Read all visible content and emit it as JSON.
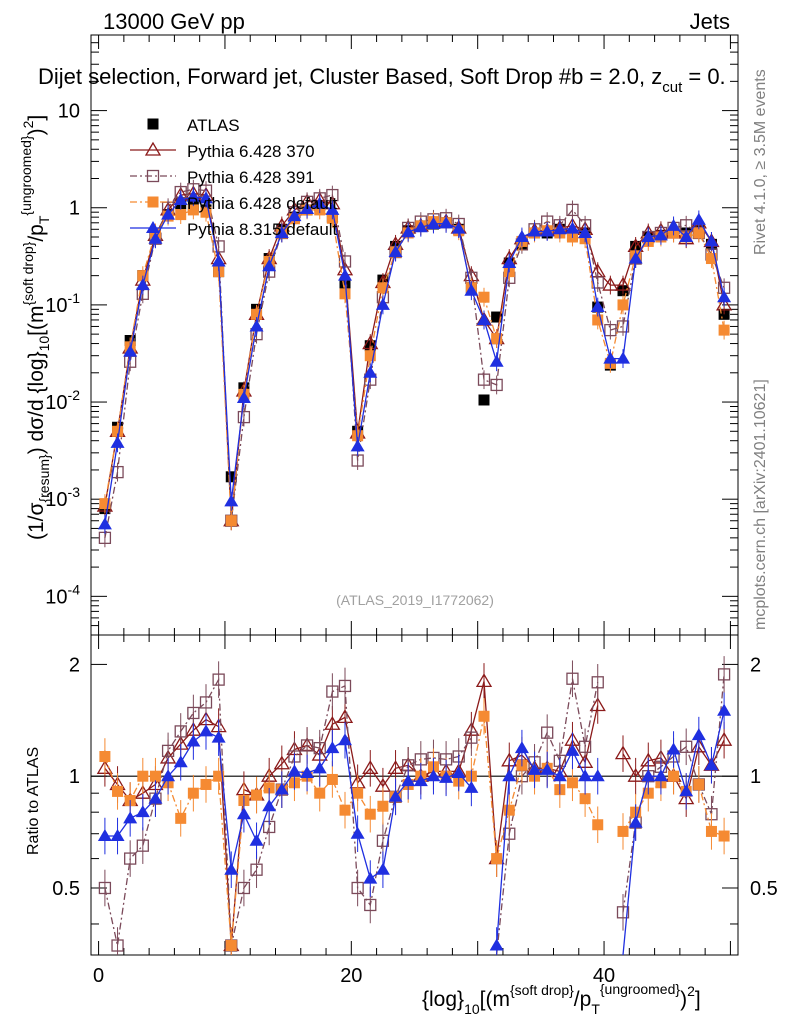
{
  "header": {
    "energy_label": "13000 GeV pp",
    "process_label": "Jets",
    "plot_title": "Dijet selection, Forward jet, Cluster Based, Soft Drop #b = 2.0, z",
    "plot_title_sub": "cut",
    "plot_title_tail": " = 0.",
    "rivet_label": "Rivet 4.1.0, ≥ 3.5M events",
    "mcplots_label": "mcplots.cern.ch [arXiv:2401.10621]",
    "analysis_label": "(ATLAS_2019_I1772062)"
  },
  "colors": {
    "atlas": "#000000",
    "py370": "#8b1a1a",
    "py391": "#7b4a5a",
    "py6def": "#f58a32",
    "py8": "#1f2fe0"
  },
  "chart_data": {
    "type": "scatter",
    "title": "Dijet selection, Forward jet, Cluster Based, Soft Drop #b = 2.0, zcut = 0.",
    "xlabel": "{log}10[(m{soft drop}/pT{ungroomed})2]",
    "ylabel_main": "(1/σ{resum}) dσ/d {log}10[(m{soft drop}/pT{ungroomed})2]",
    "ylabel_ratio": "Ratio to ATLAS",
    "xlim": [
      -0.6,
      50.6
    ],
    "ylim_main": [
      4e-05,
      60
    ],
    "ylim_ratio": [
      0.33,
      2.4
    ],
    "yscale_main": "log",
    "yscale_ratio": "log",
    "x_ticks": [
      0,
      20,
      40
    ],
    "y_ticks_main": [
      {
        "v": 0.0001,
        "b": "10",
        "e": "-4"
      },
      {
        "v": 0.001,
        "b": "10",
        "e": "-3"
      },
      {
        "v": 0.01,
        "b": "10",
        "e": "-2"
      },
      {
        "v": 0.1,
        "b": "10",
        "e": "-1"
      },
      {
        "v": 1,
        "b": "1",
        "e": ""
      },
      {
        "v": 10,
        "b": "10",
        "e": ""
      }
    ],
    "y_ticks_ratio": [
      0.5,
      1,
      2
    ],
    "legend_position": "top-left",
    "x": [
      0.5,
      1.5,
      2.5,
      3.5,
      4.5,
      5.5,
      6.5,
      7.5,
      8.5,
      9.5,
      10.5,
      11.5,
      12.5,
      13.5,
      14.5,
      15.5,
      16.5,
      17.5,
      18.5,
      19.5,
      20.5,
      21.5,
      22.5,
      23.5,
      24.5,
      25.5,
      26.5,
      27.5,
      28.5,
      29.5,
      30.5,
      31.5,
      32.5,
      33.5,
      34.5,
      35.5,
      36.5,
      37.5,
      38.5,
      39.5,
      40.5,
      41.5,
      42.5,
      43.5,
      44.5,
      45.5,
      46.5,
      47.5,
      48.5,
      49.5
    ],
    "series": [
      {
        "name": "ATLAS",
        "key": "atlas",
        "marker": "square-filled",
        "line": "none",
        "values": [
          0.0008,
          0.0055,
          0.043,
          0.2,
          0.55,
          0.85,
          1.1,
          1.05,
          0.95,
          0.22,
          0.0017,
          0.014,
          0.09,
          0.3,
          0.6,
          0.8,
          0.95,
          1.05,
          0.8,
          0.16,
          0.005,
          0.038,
          0.18,
          0.4,
          0.58,
          0.65,
          0.68,
          0.7,
          0.6,
          0.15,
          0.0105,
          0.075,
          0.27,
          0.42,
          0.55,
          0.55,
          0.6,
          0.52,
          0.55,
          0.095,
          0.024,
          0.14,
          0.4,
          0.5,
          0.52,
          0.55,
          0.55,
          0.58,
          0.42,
          0.08
        ]
      },
      {
        "name": "Pythia 6.428 370",
        "key": "py370",
        "marker": "triangle-open",
        "line": "solid",
        "values": [
          0.00085,
          0.005,
          0.036,
          0.18,
          0.52,
          0.95,
          1.35,
          1.4,
          1.35,
          0.3,
          0.0006,
          0.013,
          0.08,
          0.3,
          0.65,
          0.95,
          1.15,
          1.2,
          1.1,
          0.23,
          0.0048,
          0.04,
          0.17,
          0.42,
          0.62,
          0.65,
          0.7,
          0.72,
          0.62,
          0.2,
          0.07,
          0.045,
          0.3,
          0.48,
          0.58,
          0.58,
          0.62,
          0.65,
          0.6,
          0.22,
          0.16,
          0.16,
          0.4,
          0.55,
          0.58,
          0.55,
          0.48,
          0.7,
          0.45,
          0.1
        ]
      },
      {
        "name": "Pythia 6.428 391",
        "key": "py391",
        "marker": "square-open",
        "line": "dashdot",
        "values": [
          0.0004,
          0.0019,
          0.026,
          0.13,
          0.48,
          1.0,
          1.45,
          1.55,
          1.5,
          0.4,
          0.0006,
          0.007,
          0.05,
          0.22,
          0.55,
          0.9,
          1.15,
          1.25,
          1.35,
          0.28,
          0.0025,
          0.017,
          0.12,
          0.35,
          0.62,
          0.72,
          0.76,
          0.78,
          0.68,
          0.19,
          0.017,
          0.015,
          0.19,
          0.42,
          0.6,
          0.72,
          0.66,
          0.95,
          0.66,
          0.17,
          0.055,
          0.06,
          0.3,
          0.5,
          0.55,
          0.62,
          0.66,
          0.55,
          0.33,
          0.15
        ]
      },
      {
        "name": "Pythia 6.428 default",
        "key": "py6def",
        "marker": "square-filled",
        "line": "dashdot",
        "values": [
          0.0009,
          0.005,
          0.037,
          0.2,
          0.55,
          0.82,
          0.85,
          0.95,
          0.9,
          0.22,
          0.0006,
          0.012,
          0.08,
          0.28,
          0.55,
          0.77,
          0.95,
          0.95,
          0.78,
          0.13,
          0.0045,
          0.03,
          0.15,
          0.35,
          0.55,
          0.65,
          0.72,
          0.7,
          0.58,
          0.15,
          0.12,
          0.045,
          0.22,
          0.45,
          0.55,
          0.58,
          0.55,
          0.5,
          0.48,
          0.07,
          0.025,
          0.1,
          0.32,
          0.45,
          0.5,
          0.55,
          0.5,
          0.55,
          0.3,
          0.055
        ]
      },
      {
        "name": "Pythia 8.315 default",
        "key": "py8",
        "marker": "triangle-filled",
        "line": "solid",
        "values": [
          0.00055,
          0.0038,
          0.033,
          0.16,
          0.48,
          0.85,
          1.2,
          1.3,
          1.25,
          0.28,
          0.00095,
          0.011,
          0.06,
          0.25,
          0.55,
          0.82,
          0.97,
          1.1,
          0.95,
          0.2,
          0.0035,
          0.02,
          0.1,
          0.35,
          0.56,
          0.63,
          0.68,
          0.69,
          0.61,
          0.14,
          0.07,
          0.026,
          0.27,
          0.5,
          0.57,
          0.57,
          0.6,
          0.61,
          0.55,
          0.095,
          0.028,
          0.028,
          0.3,
          0.5,
          0.52,
          0.65,
          0.5,
          0.75,
          0.45,
          0.12
        ]
      }
    ],
    "ratio_series": [
      {
        "key": "py370",
        "values": [
          1.05,
          0.95,
          0.86,
          0.9,
          0.95,
          1.12,
          1.22,
          1.33,
          1.42,
          1.36,
          0.35,
          0.92,
          0.89,
          1.0,
          1.08,
          1.18,
          1.21,
          1.14,
          1.38,
          1.44,
          0.96,
          1.05,
          0.94,
          1.05,
          1.07,
          1.0,
          1.03,
          1.03,
          1.03,
          1.33,
          1.8,
          0.6,
          1.1,
          1.14,
          1.05,
          1.05,
          1.03,
          1.25,
          1.09,
          1.55,
          null,
          1.15,
          1.0,
          1.1,
          1.12,
          1.0,
          0.87,
          1.2,
          1.07,
          1.25
        ]
      },
      {
        "key": "py391",
        "values": [
          0.5,
          0.35,
          0.6,
          0.65,
          0.87,
          1.17,
          1.32,
          1.48,
          1.58,
          1.82,
          0.35,
          0.5,
          0.56,
          0.73,
          0.92,
          1.13,
          1.21,
          1.19,
          1.69,
          1.75,
          0.5,
          0.45,
          0.67,
          0.88,
          1.07,
          1.11,
          1.12,
          1.11,
          1.13,
          1.27,
          null,
          0.2,
          0.7,
          1.0,
          1.09,
          1.31,
          1.1,
          1.83,
          1.2,
          1.79,
          null,
          0.43,
          0.75,
          1.0,
          1.06,
          1.13,
          1.2,
          0.95,
          0.79,
          1.88
        ]
      },
      {
        "key": "py6def",
        "values": [
          1.13,
          0.91,
          0.86,
          1.0,
          1.0,
          0.96,
          0.77,
          0.9,
          0.95,
          1.0,
          0.35,
          0.86,
          0.89,
          0.93,
          0.92,
          0.96,
          1.0,
          0.9,
          0.98,
          0.81,
          0.9,
          0.79,
          0.83,
          0.88,
          0.95,
          1.0,
          1.06,
          1.0,
          0.97,
          1.0,
          1.45,
          0.6,
          0.81,
          1.07,
          1.0,
          1.05,
          0.92,
          0.96,
          0.87,
          0.74,
          null,
          0.71,
          0.8,
          0.9,
          0.96,
          1.0,
          0.91,
          0.95,
          0.71,
          0.69
        ]
      },
      {
        "key": "py8",
        "values": [
          0.69,
          0.69,
          0.77,
          0.8,
          0.87,
          1.0,
          1.09,
          1.24,
          1.32,
          1.27,
          0.56,
          0.79,
          0.67,
          0.83,
          0.92,
          1.03,
          1.02,
          1.05,
          1.19,
          1.25,
          0.7,
          0.53,
          0.56,
          0.88,
          0.97,
          0.97,
          1.0,
          0.99,
          1.02,
          0.93,
          null,
          0.35,
          1.0,
          1.19,
          1.04,
          1.04,
          1.0,
          1.17,
          1.0,
          1.0,
          null,
          0.2,
          0.75,
          1.0,
          1.0,
          1.18,
          0.91,
          1.29,
          1.07,
          1.5
        ]
      }
    ]
  }
}
